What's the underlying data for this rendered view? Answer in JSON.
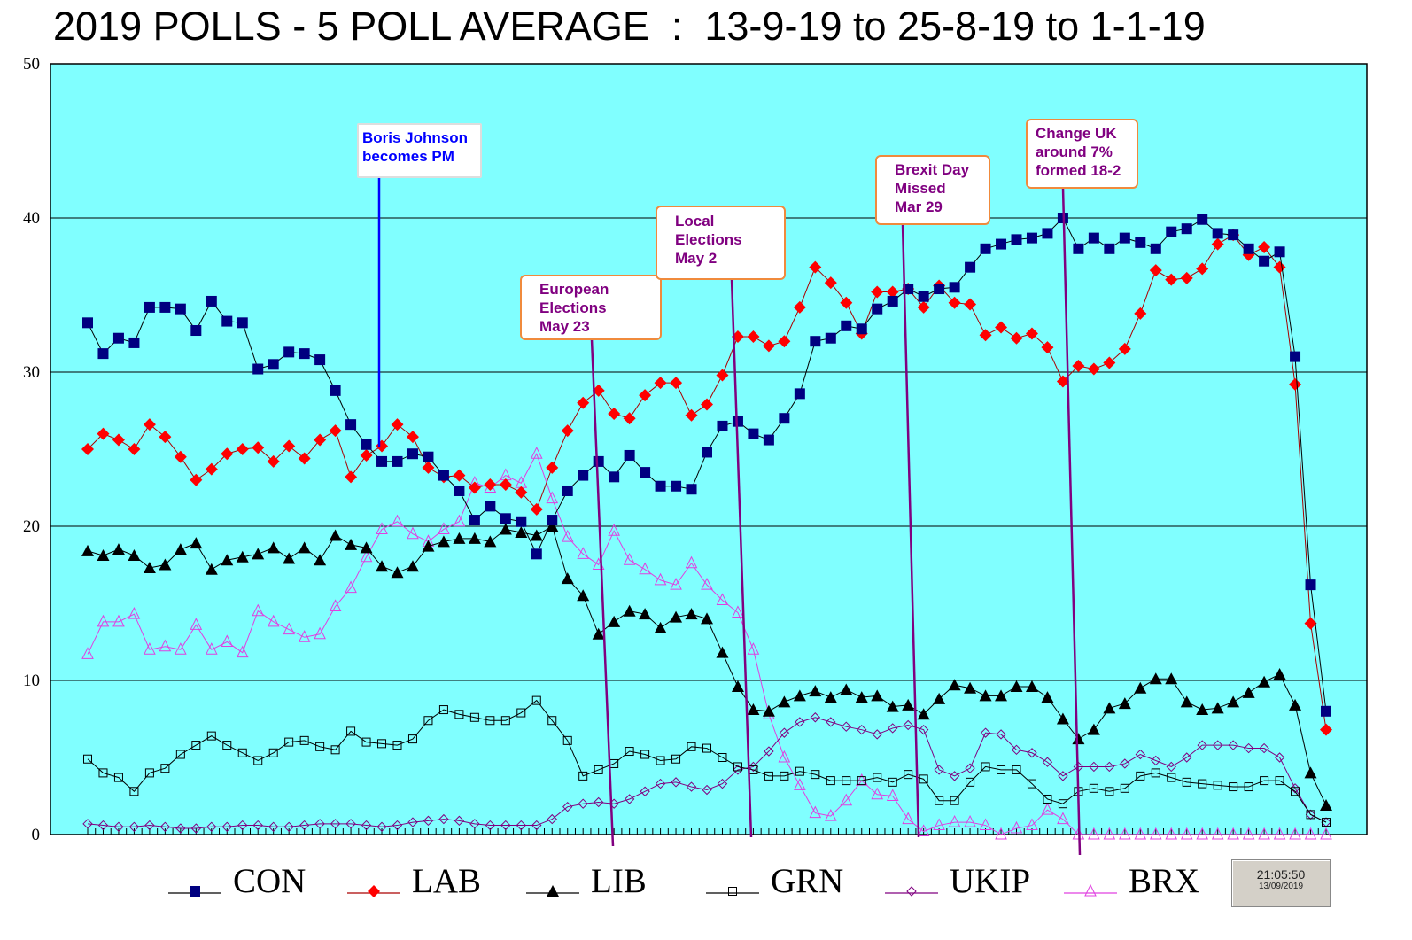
{
  "chart_data": {
    "type": "line",
    "title": "2019 POLLS - 5 POLL AVERAGE  :  13-9-19 to 25-8-19 to 1-1-19",
    "xlabel": "",
    "ylabel": "",
    "ylim": [
      0,
      50
    ],
    "yticks": [
      "0",
      "10",
      "20",
      "30",
      "40",
      "50"
    ],
    "grid": true,
    "background": "#80ffff",
    "legend_placement": "bottom",
    "series": [
      {
        "name": "CON",
        "color": "#000080",
        "marker": "square-filled",
        "values": [
          33.2,
          31.2,
          32.2,
          31.9,
          34.2,
          34.2,
          34.1,
          32.7,
          34.6,
          33.3,
          33.2,
          30.2,
          30.5,
          31.3,
          31.2,
          30.8,
          28.8,
          26.6,
          25.3,
          24.2,
          24.2,
          24.7,
          24.5,
          23.3,
          22.3,
          20.4,
          21.3,
          20.5,
          20.3,
          18.2,
          20.4,
          22.3,
          23.3,
          24.2,
          23.2,
          24.6,
          23.5,
          22.6,
          22.6,
          22.4,
          24.8,
          26.5,
          26.8,
          26.0,
          25.6,
          27.0,
          28.6,
          32.0,
          32.2,
          33.0,
          32.8,
          34.1,
          34.6,
          35.4,
          34.9,
          35.4,
          35.5,
          36.8,
          38.0,
          38.3,
          38.6,
          38.7,
          39.0,
          40.0,
          38.0,
          38.7,
          38.0,
          38.7,
          38.4,
          38.0,
          39.1,
          39.3,
          39.9,
          39.0,
          38.9,
          38.0,
          37.2,
          37.8,
          31.0,
          16.2,
          8.0
        ]
      },
      {
        "name": "LAB",
        "color": "#ff0000",
        "marker": "diamond-filled",
        "values": [
          25.0,
          26.0,
          25.6,
          25.0,
          26.6,
          25.8,
          24.5,
          23.0,
          23.7,
          24.7,
          25.0,
          25.1,
          24.2,
          25.2,
          24.4,
          25.6,
          26.2,
          23.2,
          24.6,
          25.2,
          26.6,
          25.8,
          23.8,
          23.2,
          23.3,
          22.5,
          22.7,
          22.7,
          22.2,
          21.1,
          23.8,
          26.2,
          28.0,
          28.8,
          27.3,
          27.0,
          28.5,
          29.3,
          29.3,
          27.2,
          27.9,
          29.8,
          32.3,
          32.3,
          31.7,
          32.0,
          34.2,
          36.8,
          35.8,
          34.5,
          32.5,
          35.2,
          35.2,
          35.4,
          34.2,
          35.6,
          34.5,
          34.4,
          32.4,
          32.9,
          32.2,
          32.5,
          31.6,
          29.4,
          30.4,
          30.2,
          30.6,
          31.5,
          33.8,
          36.6,
          36.0,
          36.1,
          36.7,
          38.3,
          38.9,
          37.6,
          38.1,
          36.8,
          29.2,
          13.7,
          6.8
        ]
      },
      {
        "name": "LIB",
        "color": "#000000",
        "marker": "triangle-filled",
        "values": [
          18.4,
          18.1,
          18.5,
          18.1,
          17.3,
          17.5,
          18.5,
          18.9,
          17.2,
          17.8,
          18.0,
          18.2,
          18.6,
          17.9,
          18.6,
          17.8,
          19.4,
          18.8,
          18.6,
          17.4,
          17.0,
          17.4,
          18.7,
          19.0,
          19.2,
          19.2,
          19.0,
          19.8,
          19.6,
          19.4,
          20.0,
          16.6,
          15.5,
          13.0,
          13.8,
          14.5,
          14.3,
          13.4,
          14.1,
          14.3,
          14.0,
          11.8,
          9.6,
          8.1,
          8.0,
          8.6,
          9.0,
          9.3,
          8.9,
          9.4,
          8.9,
          9.0,
          8.3,
          8.4,
          7.8,
          8.8,
          9.7,
          9.5,
          9.0,
          9.0,
          9.6,
          9.6,
          8.9,
          7.5,
          6.2,
          6.8,
          8.2,
          8.5,
          9.5,
          10.1,
          10.1,
          8.6,
          8.1,
          8.2,
          8.6,
          9.2,
          9.9,
          10.4,
          8.4,
          4.0,
          1.9
        ]
      },
      {
        "name": "GRN",
        "color": "#000000",
        "marker": "square-open",
        "values": [
          4.9,
          4.0,
          3.7,
          2.8,
          4.0,
          4.3,
          5.2,
          5.8,
          6.4,
          5.8,
          5.3,
          4.8,
          5.3,
          6.0,
          6.1,
          5.7,
          5.5,
          6.7,
          6.0,
          5.9,
          5.8,
          6.2,
          7.4,
          8.1,
          7.8,
          7.6,
          7.4,
          7.4,
          7.9,
          8.7,
          7.4,
          6.1,
          3.8,
          4.2,
          4.6,
          5.4,
          5.2,
          4.8,
          4.9,
          5.7,
          5.6,
          5.0,
          4.4,
          4.2,
          3.8,
          3.8,
          4.1,
          3.9,
          3.5,
          3.5,
          3.5,
          3.7,
          3.4,
          3.9,
          3.6,
          2.2,
          2.2,
          3.4,
          4.4,
          4.2,
          4.2,
          3.3,
          2.3,
          2.0,
          2.8,
          3.0,
          2.8,
          3.0,
          3.8,
          4.0,
          3.7,
          3.4,
          3.3,
          3.2,
          3.1,
          3.1,
          3.5,
          3.5,
          2.8,
          1.3,
          0.8
        ]
      },
      {
        "name": "UKIP",
        "color": "#800080",
        "marker": "diamond-open",
        "values": [
          0.7,
          0.6,
          0.5,
          0.5,
          0.6,
          0.5,
          0.4,
          0.4,
          0.5,
          0.5,
          0.6,
          0.6,
          0.5,
          0.5,
          0.6,
          0.7,
          0.7,
          0.7,
          0.6,
          0.5,
          0.6,
          0.8,
          0.9,
          1.0,
          0.9,
          0.7,
          0.6,
          0.6,
          0.6,
          0.6,
          1.0,
          1.8,
          2.0,
          2.1,
          2.0,
          2.3,
          2.8,
          3.3,
          3.4,
          3.1,
          2.9,
          3.3,
          4.2,
          4.4,
          5.4,
          6.6,
          7.3,
          7.6,
          7.3,
          7.0,
          6.8,
          6.5,
          6.9,
          7.1,
          6.8,
          4.2,
          3.8,
          4.3,
          6.6,
          6.5,
          5.5,
          5.3,
          4.7,
          3.8,
          4.4,
          4.4,
          4.4,
          4.6,
          5.2,
          4.8,
          4.4,
          5.0,
          5.8,
          5.8,
          5.8,
          5.6,
          5.6,
          5.0,
          3.0,
          1.3,
          0.8
        ]
      },
      {
        "name": "BRX",
        "color": "#e040e0",
        "marker": "triangle-open",
        "values": [
          11.7,
          13.8,
          13.8,
          14.3,
          12.0,
          12.2,
          12.0,
          13.6,
          12.0,
          12.5,
          11.8,
          14.5,
          13.8,
          13.3,
          12.8,
          13.0,
          14.8,
          16.0,
          18.0,
          19.8,
          20.3,
          19.5,
          19.0,
          19.8,
          20.3,
          22.8,
          22.5,
          23.3,
          22.8,
          24.7,
          21.8,
          19.3,
          18.2,
          17.5,
          19.7,
          17.8,
          17.2,
          16.5,
          16.2,
          17.6,
          16.2,
          15.2,
          14.4,
          12.0,
          7.8,
          5.0,
          3.2,
          1.4,
          1.2,
          2.2,
          3.5,
          2.6,
          2.5,
          1.0,
          0.2,
          0.6,
          0.8,
          0.8,
          0.6,
          0.0,
          0.4,
          0.6,
          1.6,
          1.0,
          0.0,
          0.0,
          0.0,
          0.0,
          0.0,
          0.0,
          0.0,
          0.0,
          0.0,
          0.0,
          0.0,
          0.0,
          0.0,
          0.0,
          0.0,
          0.0,
          0.0
        ]
      }
    ],
    "annotations": [
      {
        "text_lines": [
          "Boris Johnson",
          "becomes PM"
        ],
        "point_index": 19,
        "color": "#0000ff"
      },
      {
        "text_lines": [
          "European",
          "Elections",
          "May 23"
        ],
        "point_index": 34,
        "color": "#800080"
      },
      {
        "text_lines": [
          "Local",
          "Elections",
          "May 2"
        ],
        "point_index": 43,
        "color": "#800080"
      },
      {
        "text_lines": [
          "Brexit Day",
          "Missed",
          "Mar 29"
        ],
        "point_index": 54,
        "color": "#800080"
      },
      {
        "text_lines": [
          "Change UK",
          "around 7%",
          "formed 18-2"
        ],
        "point_index": 64,
        "color": "#800080"
      }
    ]
  },
  "timestamp": {
    "time": "21:05:50",
    "date": "13/09/2019"
  }
}
